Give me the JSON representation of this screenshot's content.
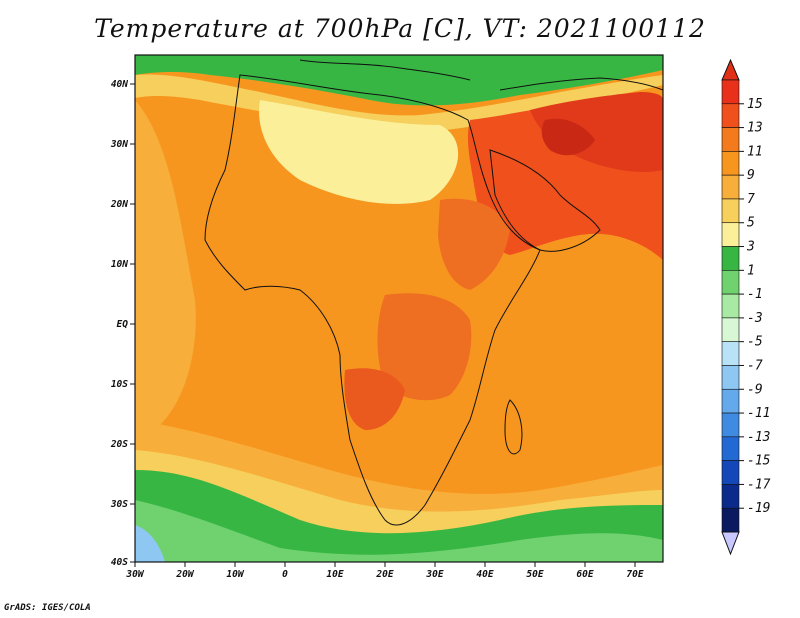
{
  "title": "Temperature at 700hPa [C], VT: 2021100112",
  "credit": "GrADS: IGES/COLA",
  "map": {
    "lon_ticks": [
      "30W",
      "20W",
      "10W",
      "0",
      "10E",
      "20E",
      "30E",
      "40E",
      "50E",
      "60E",
      "70E"
    ],
    "lat_ticks": [
      "40N",
      "30N",
      "20N",
      "10N",
      "EQ",
      "10S",
      "20S",
      "30S",
      "40S"
    ]
  },
  "colorbar": {
    "labels": [
      "15",
      "13",
      "11",
      "9",
      "7",
      "5",
      "3",
      "1",
      "-1",
      "-3",
      "-5",
      "-7",
      "-9",
      "-11",
      "-13",
      "-15",
      "-17",
      "-19"
    ],
    "colors": [
      "#e8301a",
      "#f0501c",
      "#f47a1e",
      "#f7961f",
      "#f8ae3a",
      "#f6cf5c",
      "#fbef9a",
      "#38b644",
      "#6fd26f",
      "#a8eaa3",
      "#d8f7d4",
      "#b9e2f7",
      "#8ec7f2",
      "#64a9ec",
      "#3e8be1",
      "#2369d4",
      "#1447b8",
      "#0b2a8c",
      "#0b1a60"
    ],
    "top_arrow_color": "#e03018",
    "bottom_arrow_color": "#c8c8ff"
  },
  "regions": [
    {
      "name": "warm-region-arabia",
      "color": "#e85a1e"
    },
    {
      "name": "warm-region-persia",
      "color": "#e03a1a"
    },
    {
      "name": "warm-region-angola",
      "color": "#ed6a22"
    },
    {
      "name": "warm-region-east-africa",
      "color": "#ee6e22"
    },
    {
      "name": "cool-region-mediterranean",
      "color": "#4cc251"
    },
    {
      "name": "cool-region-southern-ocean",
      "color": "#6fd26f"
    }
  ]
}
